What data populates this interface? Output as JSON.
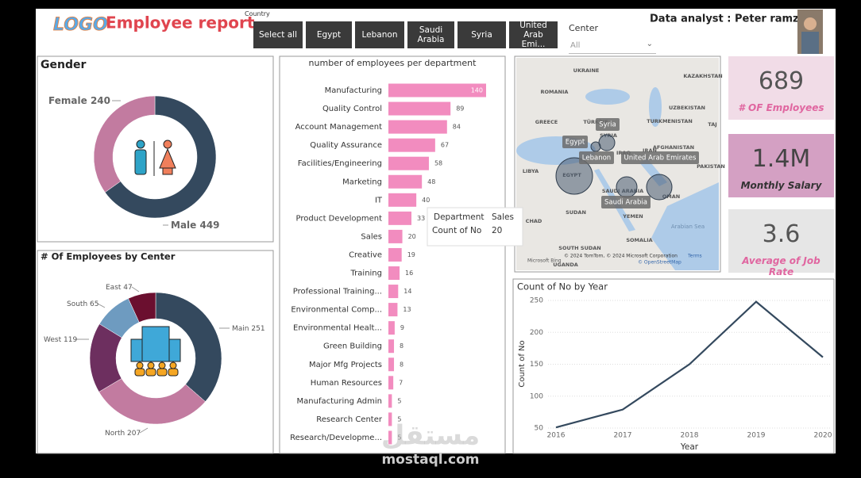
{
  "header": {
    "logo": "LOGO",
    "title": "Employee report",
    "analyst": "Data analyst : Peter ramzy"
  },
  "country_slicer": {
    "label": "Country",
    "options": [
      "Select all",
      "Egypt",
      "Lebanon",
      "Saudi Arabia",
      "Syria",
      "United Arab Emi..."
    ]
  },
  "center_slicer": {
    "label": "Center",
    "value": "All"
  },
  "cards": [
    {
      "value": "689",
      "label": "# OF Employees"
    },
    {
      "value": "1.4M",
      "label": "Monthly Salary"
    },
    {
      "value": "3.6",
      "label": "Average of Job Rate"
    }
  ],
  "map": {
    "labels": [
      "UKRAINE",
      "KAZAKHSTAN",
      "ROMANIA",
      "UZBEKISTAN",
      "GREECE",
      "TÜRKİYE",
      "TURKMENISTAN",
      "TAJ",
      "SYRIA",
      "IRAQ",
      "IRAN",
      "AFGHANISTAN",
      "PAKISTAN",
      "LIBYA",
      "EGYPT",
      "SAUDI ARABIA",
      "OMAN",
      "SUDAN",
      "CHAD",
      "YEMEN",
      "Arabian Sea",
      "SOMALIA",
      "SOUTH SUDAN",
      "UGANDA"
    ],
    "bubble_labels": [
      "Syria",
      "Egypt",
      "Lebanon",
      "United Arab Emirates",
      "Saudi Arabia"
    ],
    "attribution": "© 2024 TomTom, © 2024 Microsoft Corporation",
    "terms": "Terms",
    "osm": "© OpenStreetMap",
    "bing": "Microsoft Bing"
  },
  "watermark": {
    "arabic": "مستقل",
    "latin": "mostaql.com"
  },
  "chart_data": [
    {
      "type": "donut",
      "title": "Gender",
      "categories": [
        "Male",
        "Female"
      ],
      "values": [
        449,
        240
      ],
      "colors": [
        "#34495e",
        "#c27ba0"
      ]
    },
    {
      "type": "donut",
      "title": "# Of Employees by Center",
      "categories": [
        "Main",
        "North",
        "West",
        "South",
        "East"
      ],
      "values": [
        251,
        207,
        119,
        65,
        47
      ],
      "colors": [
        "#34495e",
        "#c27ba0",
        "#6d2f5f",
        "#6e9bc0",
        "#6b0f2f"
      ]
    },
    {
      "type": "bar",
      "title": "number of employees per department",
      "categories": [
        "Manufacturing",
        "Quality Control",
        "Account Management",
        "Quality Assurance",
        "Facilities/Engineering",
        "Marketing",
        "IT",
        "Product Development",
        "Sales",
        "Creative",
        "Training",
        "Professional Training...",
        "Environmental Comp...",
        "Environmental Healt...",
        "Green Building",
        "Major Mfg Projects",
        "Human Resources",
        "Manufacturing Admin",
        "Research Center",
        "Research/Developme..."
      ],
      "values": [
        140,
        89,
        84,
        67,
        58,
        48,
        40,
        33,
        20,
        19,
        16,
        14,
        13,
        9,
        8,
        8,
        7,
        5,
        5,
        5
      ],
      "color": "#f28cbf",
      "tooltip": {
        "category_label": "Department",
        "value_label": "Count of No"
      }
    },
    {
      "type": "line",
      "title": "Count of No by Year",
      "x": [
        2016,
        2017,
        2018,
        2019,
        2020
      ],
      "values": [
        51,
        79,
        150,
        248,
        161
      ],
      "color": "#34495e",
      "xlim": [
        2016,
        2020
      ],
      "xticks": [
        2016,
        2017,
        2018,
        2019,
        2020
      ],
      "ylim": [
        50,
        250
      ],
      "yticks": [
        50,
        100,
        150,
        200,
        250
      ],
      "xlabel": "Year",
      "ylabel": "Count of No",
      "grid": true
    }
  ]
}
